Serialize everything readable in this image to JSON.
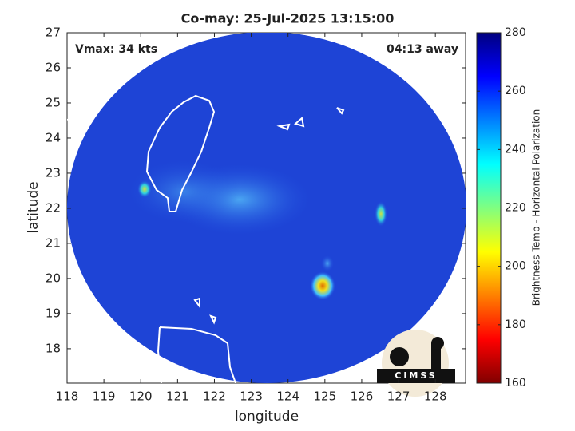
{
  "chart_data": {
    "type": "image-map",
    "title": "Co-may: 25-Jul-2025 13:15:00",
    "annotations": [
      "Vmax: 34 kts",
      "04:13 away"
    ],
    "x_label": "longitude",
    "y_label": "latitude",
    "xlim": [
      118,
      128.82
    ],
    "ylim": [
      17.02,
      27
    ],
    "xticks": [
      118,
      119,
      120,
      121,
      122,
      123,
      124,
      125,
      126,
      127,
      128
    ],
    "yticks": [
      18,
      19,
      20,
      21,
      22,
      23,
      24,
      25,
      26,
      27
    ],
    "colorbar": {
      "label": "Brightness Temp - Horizontal Polarization",
      "lim": [
        160,
        280
      ],
      "ticks": [
        160,
        180,
        200,
        220,
        240,
        260,
        280
      ],
      "colormap": [
        "#800000",
        "#ff0000",
        "#ff8000",
        "#ffff00",
        "#80ff80",
        "#00ffff",
        "#0080ff",
        "#0000ff",
        "#000080"
      ]
    },
    "logo": "CIMSS"
  }
}
